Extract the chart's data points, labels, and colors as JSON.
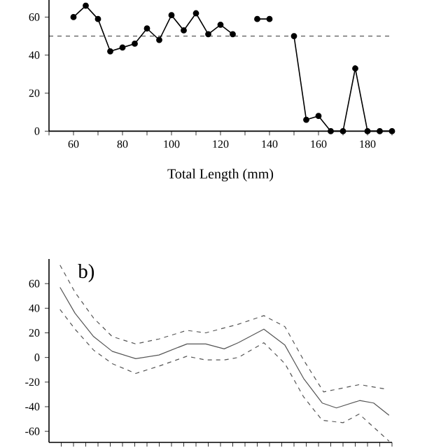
{
  "chart_data": [
    {
      "type": "line",
      "xlabel": "Total Length (mm)",
      "color": "#000000",
      "marker": "circle",
      "line_style": "solid",
      "x": [
        60,
        65,
        70,
        75,
        80,
        85,
        90,
        95,
        100,
        105,
        110,
        115,
        120,
        125,
        130,
        135,
        140,
        145,
        150,
        155,
        160,
        165,
        170,
        175,
        180,
        185,
        190
      ],
      "values": [
        60,
        66,
        59,
        42,
        44,
        46,
        54,
        48,
        61,
        53,
        62,
        51,
        56,
        51,
        null,
        59,
        59,
        null,
        50,
        6,
        8,
        0,
        0,
        33,
        0,
        0,
        0
      ],
      "xlim": [
        50,
        190
      ],
      "ylim": [
        0,
        69
      ],
      "xticks": [
        {
          "value": 50,
          "label": null
        },
        60,
        {
          "value": 70,
          "label": null
        },
        80,
        {
          "value": 90,
          "label": null
        },
        100,
        {
          "value": 110,
          "label": null
        },
        120,
        {
          "value": 130,
          "label": null
        },
        140,
        {
          "value": 150,
          "label": null
        },
        160,
        {
          "value": 170,
          "label": null
        },
        180,
        {
          "value": 190,
          "label": null
        }
      ],
      "yticks": [
        0,
        20,
        40,
        60
      ],
      "ref_lines": [
        {
          "axis": "y",
          "value": 50,
          "line_style": "dashed",
          "color": "#000000"
        }
      ]
    },
    {
      "type": "line",
      "annotations": [
        "b)"
      ],
      "tick_labels": "y",
      "marker": "none",
      "series": [
        {
          "color": "#555555",
          "line_style": "solid",
          "x": [
            54.5,
            60.6,
            68.2,
            75.8,
            85.4,
            94.9,
            106.3,
            114,
            121.5,
            127.3,
            137.7,
            146.3,
            153.9,
            161.5,
            167.3,
            176.8,
            182.5,
            188.8
          ],
          "values": [
            57,
            36,
            17,
            5,
            -1,
            2,
            11,
            11,
            7,
            12,
            23,
            10,
            -17,
            -37,
            -41,
            -35,
            -37,
            -47
          ]
        },
        {
          "color": "#555555",
          "line_style": "dashed",
          "x": [
            54.5,
            60.6,
            68.2,
            75.8,
            85.4,
            94.9,
            106.3,
            114,
            127.3,
            137.7,
            146.3,
            153.9,
            162.1,
            176.8,
            188.2
          ],
          "values": [
            75,
            53,
            32,
            17,
            11,
            15,
            22,
            20,
            27,
            34,
            25,
            -2,
            -28,
            -22,
            -26
          ]
        },
        {
          "color": "#555555",
          "line_style": "dashed",
          "x": [
            54.5,
            60.6,
            68.2,
            75.8,
            85.4,
            94.9,
            106.3,
            114,
            121.5,
            127.3,
            137.7,
            146.3,
            153.9,
            161.5,
            170,
            176.6,
            188.8
          ],
          "values": [
            39,
            23,
            6,
            -5,
            -13,
            -7,
            1,
            -2,
            -2,
            0,
            12,
            -5,
            -32,
            -51,
            -53,
            -46,
            -68
          ]
        }
      ],
      "xlim": [
        50,
        190
      ],
      "ylim": [
        -69,
        80
      ],
      "xticks": [
        {
          "value": 55,
          "label": null
        },
        {
          "value": 60,
          "label": null
        },
        {
          "value": 65,
          "label": null
        },
        {
          "value": 70,
          "label": null
        },
        {
          "value": 75,
          "label": null
        },
        {
          "value": 80,
          "label": null
        },
        {
          "value": 85,
          "label": null
        },
        {
          "value": 90,
          "label": null
        },
        {
          "value": 95,
          "label": null
        },
        {
          "value": 100,
          "label": null
        },
        {
          "value": 105,
          "label": null
        },
        {
          "value": 110,
          "label": null
        },
        {
          "value": 115,
          "label": null
        },
        {
          "value": 120,
          "label": null
        },
        {
          "value": 125,
          "label": null
        },
        {
          "value": 130,
          "label": null
        },
        {
          "value": 135,
          "label": null
        },
        {
          "value": 140,
          "label": null
        },
        {
          "value": 145,
          "label": null
        },
        {
          "value": 150,
          "label": null
        },
        {
          "value": 155,
          "label": null
        },
        {
          "value": 160,
          "label": null
        },
        {
          "value": 165,
          "label": null
        },
        {
          "value": 170,
          "label": null
        },
        {
          "value": 175,
          "label": null
        },
        {
          "value": 180,
          "label": null
        },
        {
          "value": 185,
          "label": null
        },
        {
          "value": 190,
          "label": null
        }
      ],
      "yticks": [
        -60,
        -40,
        -20,
        0,
        20,
        40,
        60
      ]
    }
  ]
}
